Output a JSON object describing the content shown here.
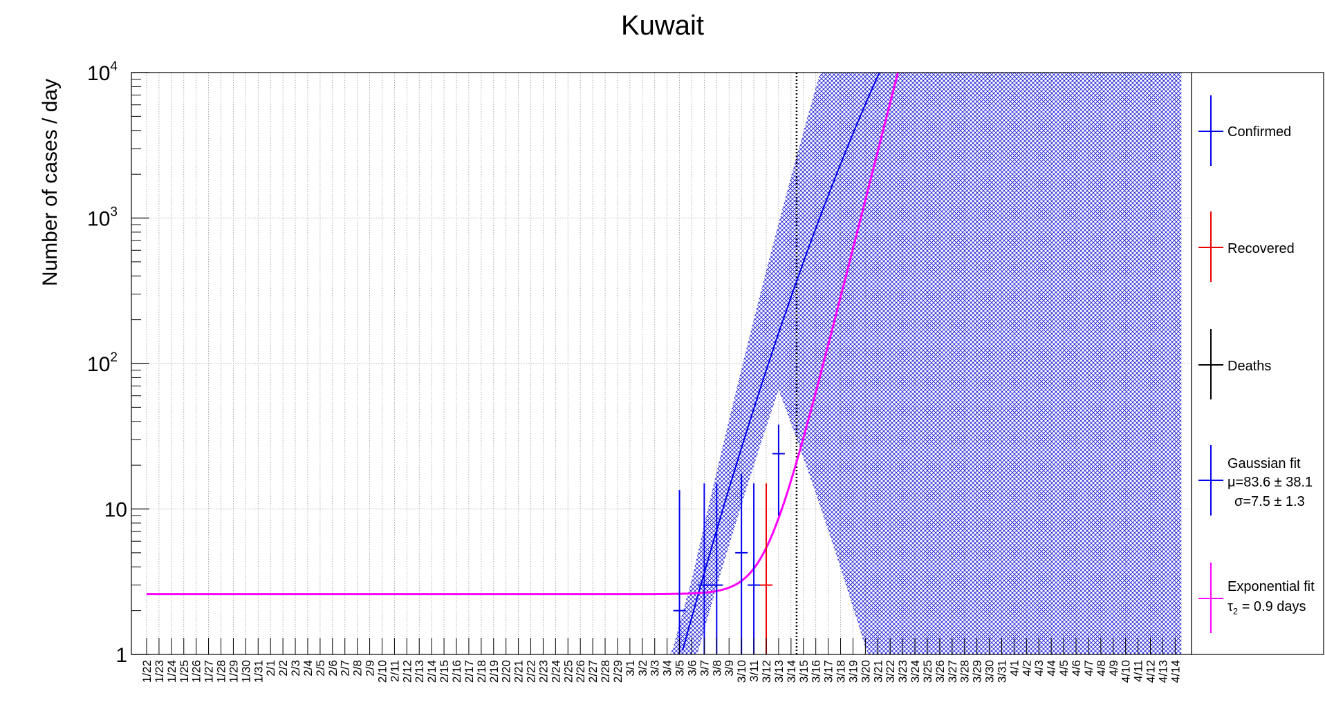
{
  "chart_data": {
    "type": "scatter",
    "title": "Kuwait",
    "ylabel": "Number of cases / day",
    "xlabel": "",
    "y_scale": "log",
    "ylim": [
      1,
      10000
    ],
    "y_ticks": [
      {
        "value": 1,
        "label": "1"
      },
      {
        "value": 10,
        "label": "10"
      },
      {
        "value": 100,
        "label": "10",
        "sup": "2"
      },
      {
        "value": 1000,
        "label": "10",
        "sup": "3"
      },
      {
        "value": 10000,
        "label": "10",
        "sup": "4"
      }
    ],
    "categories": [
      "1/22",
      "1/23",
      "1/24",
      "1/25",
      "1/26",
      "1/27",
      "1/28",
      "1/29",
      "1/30",
      "1/31",
      "2/1",
      "2/2",
      "2/3",
      "2/4",
      "2/5",
      "2/6",
      "2/7",
      "2/8",
      "2/9",
      "2/10",
      "2/11",
      "2/12",
      "2/13",
      "2/14",
      "2/15",
      "2/16",
      "2/17",
      "2/18",
      "2/19",
      "2/20",
      "2/21",
      "2/22",
      "2/23",
      "2/24",
      "2/25",
      "2/26",
      "2/27",
      "2/28",
      "2/29",
      "3/1",
      "3/2",
      "3/3",
      "3/4",
      "3/5",
      "3/6",
      "3/7",
      "3/8",
      "3/9",
      "3/10",
      "3/11",
      "3/12",
      "3/13",
      "3/14",
      "3/15",
      "3/16",
      "3/17",
      "3/18",
      "3/19",
      "3/20",
      "3/21",
      "3/22",
      "3/23",
      "3/24",
      "3/25",
      "3/26",
      "3/27",
      "3/28",
      "3/29",
      "3/30",
      "3/31",
      "4/1",
      "4/2",
      "4/3",
      "4/4",
      "4/5",
      "4/6",
      "4/7",
      "4/8",
      "4/9",
      "4/10",
      "4/11",
      "4/12",
      "4/13",
      "4/14"
    ],
    "grid": true,
    "vertical_marker": "3/14",
    "series": [
      {
        "name": "Confirmed",
        "color": "#0000ee",
        "points": [
          {
            "x": "3/5",
            "y": 2,
            "err_low": 1,
            "err_high": 13.5
          },
          {
            "x": "3/7",
            "y": 3,
            "err_low": 1,
            "err_high": 15
          },
          {
            "x": "3/8",
            "y": 3,
            "err_low": 1,
            "err_high": 15
          },
          {
            "x": "3/10",
            "y": 5,
            "err_low": 1,
            "err_high": 17.5
          },
          {
            "x": "3/11",
            "y": 3,
            "err_low": 1,
            "err_high": 15
          },
          {
            "x": "3/13",
            "y": 24,
            "err_low": 9,
            "err_high": 38
          }
        ]
      },
      {
        "name": "Recovered",
        "color": "#ee0000",
        "points": [
          {
            "x": "3/12",
            "y": 3,
            "err_low": 1,
            "err_high": 15
          }
        ]
      },
      {
        "name": "Deaths",
        "color": "#000000",
        "points": []
      }
    ],
    "fits": [
      {
        "name": "Gaussian fit",
        "color": "#0000ee",
        "mu_label": "μ=83.6 ± 38.1",
        "sigma_label": "σ=7.5 ± 1.3",
        "mu": 83.6,
        "sigma": 7.5,
        "amplitude": 2050000,
        "x_offset_category": "1/22"
      },
      {
        "name": "Exponential fit",
        "color": "#ff00ff",
        "tau_label": "τ",
        "tau_sub": "2",
        "tau_value_label": " = 0.9 days",
        "baseline": 2.6,
        "anchor_category": "3/12",
        "anchor_value": 5.4,
        "doubling_days": 0.9
      }
    ],
    "band": {
      "color": "#0000cc",
      "from_category": "3/3",
      "to_category": "4/14"
    },
    "legend_position": "right"
  }
}
